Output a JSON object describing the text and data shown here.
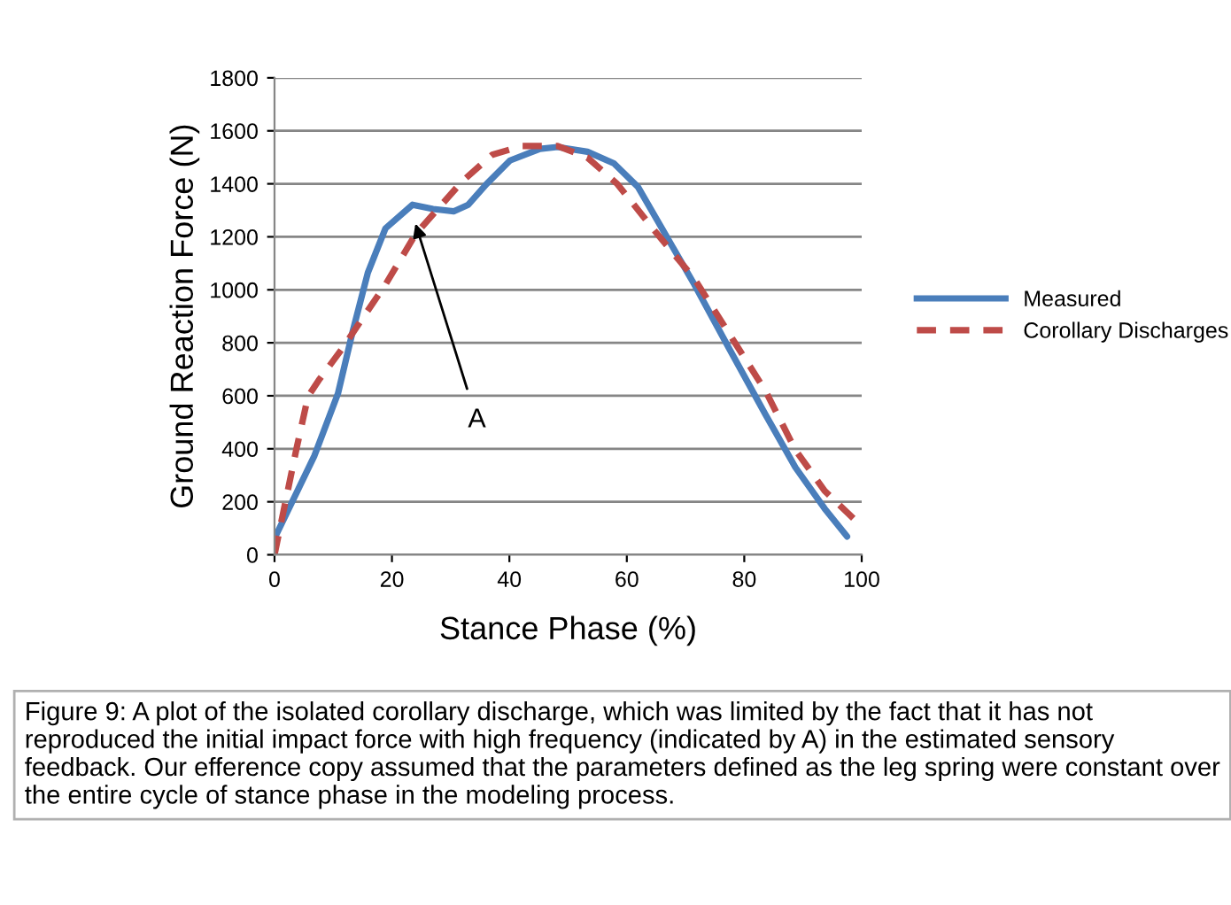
{
  "chart_data": {
    "type": "line",
    "xlabel": "Stance Phase (%)",
    "ylabel": "Ground Reaction Force (N)",
    "xlim": [
      0,
      100
    ],
    "xticks": [
      0,
      20,
      40,
      60,
      80,
      100
    ],
    "ylim": [
      0,
      1800
    ],
    "yticks": [
      0,
      200,
      400,
      600,
      800,
      1000,
      1200,
      1400,
      1600,
      1800
    ],
    "grid": "y",
    "legend": "right",
    "marker": "none",
    "series": [
      {
        "name": "Measured",
        "color": "#4a7ebb",
        "line_style": "solid",
        "x": [
          0,
          6.8,
          10.8,
          13.3,
          15.9,
          18.9,
          23.5,
          27,
          30.5,
          33,
          36.1,
          40.1,
          45.2,
          48.2,
          53.3,
          57.8,
          61.9,
          65.4,
          71.5,
          77.5,
          83.6,
          88.7,
          93.7,
          97.5
        ],
        "values": [
          62,
          374,
          608,
          842,
          1065,
          1232,
          1321,
          1305,
          1296,
          1321,
          1399,
          1488,
          1532,
          1539,
          1521,
          1477,
          1388,
          1254,
          1020,
          775,
          530,
          330,
          174,
          69
        ]
      },
      {
        "name": "Corollary Discharges",
        "color": "#be4b48",
        "line_style": "dashed",
        "x": [
          0,
          1.2,
          3.7,
          5.7,
          7.7,
          11.8,
          14.8,
          18.9,
          24,
          28,
          32,
          37.1,
          42.2,
          48.2,
          53.3,
          58.4,
          64.4,
          71.5,
          78.5,
          83.6,
          88.7,
          93.7,
          100
        ],
        "values": [
          0,
          129,
          396,
          597,
          664,
          786,
          886,
          1020,
          1209,
          1310,
          1410,
          1510,
          1543,
          1543,
          1499,
          1399,
          1232,
          1042,
          797,
          619,
          396,
          241,
          107
        ]
      }
    ],
    "annotations": [
      {
        "text": "A",
        "x": 24,
        "y": 1250
      },
      "Figure 9: A plot of the isolated corollary discharge, which was limited by the fact that it has not reproduced the initial impact force with high frequency (indicated by A) in the estimated sensory feedback. Our efference copy assumed that the parameters defined as the leg spring were constant over the entire cycle of stance phase in the modeling process."
    ]
  }
}
